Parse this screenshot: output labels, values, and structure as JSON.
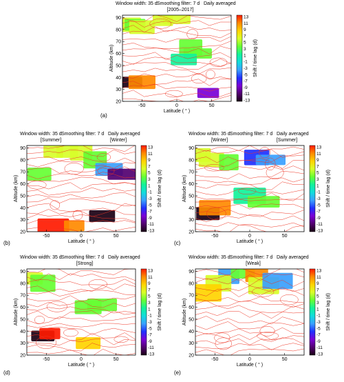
{
  "colorbar": {
    "ticks": [
      "13",
      "11",
      "9",
      "7",
      "5",
      "3",
      "1",
      "-1",
      "-3",
      "-5",
      "-7",
      "-9",
      "-11",
      "-13"
    ],
    "label": "Shift / time lag (d)",
    "stops": [
      "#ff1a00",
      "#ff8a00",
      "#ffd400",
      "#d8ff2a",
      "#66ff33",
      "#12f29a",
      "#12dcdc",
      "#3aa0ff",
      "#2030ff",
      "#7a00d6",
      "#520070",
      "#1a0014"
    ]
  },
  "colors": {
    "contour": "#ee3322",
    "background": "#ffffff"
  },
  "chart_data": [
    {
      "id": "a",
      "type": "heatmap",
      "header": [
        "Window width: 35 d",
        "Smoothing filter: 7 d",
        "Daily averaged"
      ],
      "subtitle": "[2005–2017]",
      "panel_label": "(a)",
      "xlabel": "Latitude ( ° )",
      "ylabel": "Altitude (km)",
      "xticks": [
        "-50",
        "0",
        "50"
      ],
      "yticks": [
        "20",
        "30",
        "40",
        "50",
        "60",
        "70",
        "80",
        "90"
      ],
      "xlim": [
        -78,
        78
      ],
      "ylim": [
        20,
        92
      ],
      "cells": [
        {
          "lat": -70,
          "alt": 84,
          "v": 6
        },
        {
          "lat": -60,
          "alt": 84,
          "v": 4
        },
        {
          "lat": -50,
          "alt": 82,
          "v": 7
        },
        {
          "lat": -20,
          "alt": 90,
          "v": 7
        },
        {
          "lat": 0,
          "alt": 90,
          "v": 5
        },
        {
          "lat": 20,
          "alt": 65,
          "v": 4
        },
        {
          "lat": 30,
          "alt": 60,
          "v": 3
        },
        {
          "lat": 10,
          "alt": 55,
          "v": 2
        },
        {
          "lat": -70,
          "alt": 36,
          "v": -12
        },
        {
          "lat": -50,
          "alt": 36,
          "v": 10
        },
        {
          "lat": 45,
          "alt": 27,
          "v": -8
        }
      ]
    },
    {
      "id": "b",
      "type": "heatmap",
      "header": [
        "Window width: 35 d",
        "Smoothing filter: 7 d",
        "Daily averaged"
      ],
      "subtitle_left": "[Summer]",
      "subtitle_right": "[Winter]",
      "panel_label": "(b)",
      "xlabel": "Latitude ( ° )",
      "ylabel": "Altitude (km)",
      "xticks": [
        "-50",
        "0",
        "50"
      ],
      "yticks": [
        "20",
        "30",
        "40",
        "50",
        "60",
        "70",
        "80",
        "90"
      ],
      "xlim": [
        -78,
        78
      ],
      "ylim": [
        20,
        92
      ],
      "cells": [
        {
          "lat": -40,
          "alt": 87,
          "v": 7
        },
        {
          "lat": -20,
          "alt": 88,
          "v": 5
        },
        {
          "lat": 0,
          "alt": 86,
          "v": 6
        },
        {
          "lat": 20,
          "alt": 80,
          "v": 4
        },
        {
          "lat": 40,
          "alt": 72,
          "v": -3
        },
        {
          "lat": 60,
          "alt": 68,
          "v": -10
        },
        {
          "lat": -60,
          "alt": 68,
          "v": 4
        },
        {
          "lat": -40,
          "alt": 25,
          "v": 12
        },
        {
          "lat": -10,
          "alt": 25,
          "v": 11
        },
        {
          "lat": 30,
          "alt": 33,
          "v": -12
        }
      ]
    },
    {
      "id": "c",
      "type": "heatmap",
      "header": [
        "Window width: 35 d",
        "Smoothing filter: 7 d",
        "Daily averaged"
      ],
      "subtitle_left": "[Winter]",
      "subtitle_right": "[Summer]",
      "panel_label": "(c)",
      "xlabel": "Latitude ( ° )",
      "ylabel": "Altitude (km)",
      "xticks": [
        "-50",
        "0",
        "50"
      ],
      "yticks": [
        "20",
        "30",
        "40",
        "50",
        "60",
        "70",
        "80",
        "90"
      ],
      "xlim": [
        -78,
        78
      ],
      "ylim": [
        20,
        92
      ],
      "cells": [
        {
          "lat": -70,
          "alt": 84,
          "v": 5
        },
        {
          "lat": -55,
          "alt": 80,
          "v": 6
        },
        {
          "lat": -30,
          "alt": 78,
          "v": 4
        },
        {
          "lat": 10,
          "alt": 82,
          "v": -5
        },
        {
          "lat": 30,
          "alt": 80,
          "v": -3
        },
        {
          "lat": 0,
          "alt": 50,
          "v": 2
        },
        {
          "lat": 20,
          "alt": 45,
          "v": 3
        },
        {
          "lat": -60,
          "alt": 35,
          "v": -12
        },
        {
          "lat": -50,
          "alt": 40,
          "v": 11
        }
      ]
    },
    {
      "id": "d",
      "type": "heatmap",
      "header": [
        "Window width: 35 d",
        "Smoothing filter: 7 d",
        "Daily averaged"
      ],
      "subtitle": "[Strong]",
      "panel_label": "(d)",
      "xlabel": "Latitude ( ° )",
      "ylabel": "Altitude (km)",
      "xticks": [
        "-50",
        "0",
        "50"
      ],
      "yticks": [
        "20",
        "30",
        "40",
        "50",
        "60",
        "70",
        "80",
        "90"
      ],
      "xlim": [
        -78,
        78
      ],
      "ylim": [
        20,
        92
      ],
      "cells": [
        {
          "lat": -70,
          "alt": 84,
          "v": 6
        },
        {
          "lat": -55,
          "alt": 80,
          "v": 4
        },
        {
          "lat": 10,
          "alt": 60,
          "v": 3
        },
        {
          "lat": 30,
          "alt": 62,
          "v": 4
        },
        {
          "lat": -55,
          "alt": 36,
          "v": -12
        },
        {
          "lat": -45,
          "alt": 38,
          "v": 12
        },
        {
          "lat": 10,
          "alt": 30,
          "v": 8
        }
      ]
    },
    {
      "id": "e",
      "type": "heatmap",
      "header": [
        "Window width: 35 d",
        "Smoothing filter: 7 d",
        "Daily averaged"
      ],
      "subtitle": "[Weak]",
      "panel_label": "(e)",
      "xlabel": "Latitude ( ° )",
      "ylabel": "Altitude (km)",
      "xticks": [
        "-50",
        "0",
        "50"
      ],
      "yticks": [
        "20",
        "30",
        "40",
        "50",
        "60",
        "70",
        "80",
        "90"
      ],
      "xlim": [
        -78,
        78
      ],
      "ylim": [
        20,
        92
      ],
      "cells": [
        {
          "lat": -30,
          "alt": 86,
          "v": -4
        },
        {
          "lat": -10,
          "alt": 88,
          "v": 3
        },
        {
          "lat": 10,
          "alt": 88,
          "v": 11
        },
        {
          "lat": -45,
          "alt": 80,
          "v": 6
        },
        {
          "lat": -60,
          "alt": 72,
          "v": 9
        },
        {
          "lat": 20,
          "alt": 78,
          "v": 5
        },
        {
          "lat": 40,
          "alt": 82,
          "v": -3
        }
      ]
    }
  ]
}
